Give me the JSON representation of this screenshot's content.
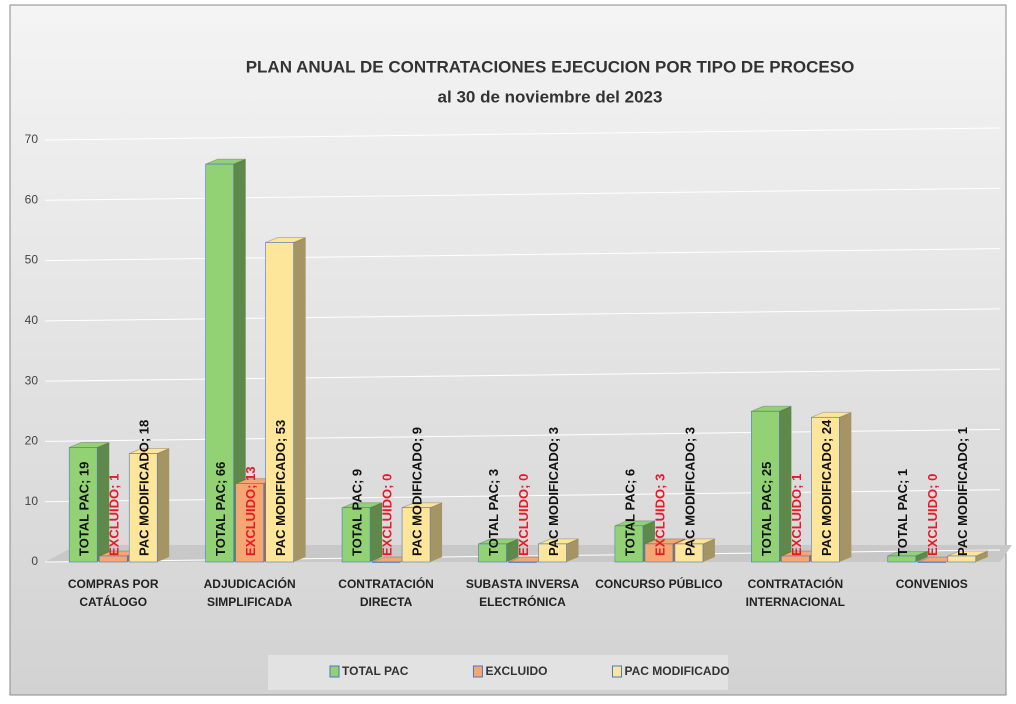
{
  "chart_data": {
    "type": "bar3d",
    "title": "PLAN ANUAL DE CONTRATACIONES EJECUCION POR TIPO DE PROCESO",
    "subtitle": "al 30 de noviembre del 2023",
    "categories": [
      "COMPRAS POR CATÁLOGO",
      "ADJUDICACIÓN SIMPLIFICADA",
      "CONTRATACIÓN DIRECTA",
      "SUBASTA INVERSA ELECTRÓNICA",
      "CONCURSO PÚBLICO",
      "CONTRATACIÓN INTERNACIONAL",
      "CONVENIOS"
    ],
    "series": [
      {
        "name": "TOTAL PAC",
        "color": "#93d274",
        "label_color": "#111111",
        "values": [
          19,
          66,
          9,
          3,
          6,
          25,
          1
        ],
        "value_labels": [
          "TOTAL PAC; 19",
          "TOTAL PAC; 66",
          "TOTAL PAC; 9",
          "TOTAL PAC; 3",
          "TOTAL PAC; 6",
          "TOTAL PAC; 25",
          "TOTAL PAC; 1"
        ]
      },
      {
        "name": "EXCLUIDO",
        "color": "#f4a772",
        "label_color": "#e8182a",
        "values": [
          1,
          13,
          0,
          0,
          3,
          1,
          0
        ],
        "value_labels": [
          "EXCLUIDO; 1",
          "EXCLUIDO; 13",
          "EXCLUIDO; 0",
          "EXCLUIDO; 0",
          "EXCLUIDO; 3",
          "EXCLUIDO; 1",
          "EXCLUIDO; 0"
        ]
      },
      {
        "name": "PAC MODIFICADO",
        "color": "#fde59a",
        "label_color": "#111111",
        "values": [
          18,
          53,
          9,
          3,
          3,
          24,
          1
        ],
        "value_labels": [
          "PAC MODIFICADO; 18",
          "PAC MODIFICADO; 53",
          "PAC MODIFICADO; 9",
          "PAC MODIFICADO; 3",
          "PAC MODIFICADO; 3",
          "PAC MODIFICADO; 24",
          "PAC MODIFICADO; 1"
        ]
      }
    ],
    "ylim": [
      0,
      70
    ],
    "yticks": [
      0,
      10,
      20,
      30,
      40,
      50,
      60,
      70
    ],
    "grid": true,
    "legend": "bottom"
  }
}
